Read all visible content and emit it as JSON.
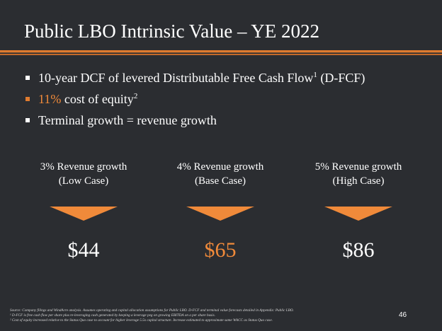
{
  "slide": {
    "title": "Public LBO Intrinsic Value – YE 2022",
    "page_number": "46"
  },
  "bullets": [
    {
      "pre": "",
      "highlight": "",
      "text": "10-year DCF of levered Distributable Free Cash Flow",
      "sup": "1",
      "post": " (D-FCF)"
    },
    {
      "pre": "",
      "highlight": "11%",
      "text": " cost of equity",
      "sup": "2",
      "post": ""
    },
    {
      "pre": "",
      "highlight": "",
      "text": "Terminal growth = revenue growth",
      "sup": "",
      "post": ""
    }
  ],
  "cases": [
    {
      "label_line1": "3% Revenue growth",
      "label_line2": "(Low Case)",
      "value": "$44"
    },
    {
      "label_line1": "4% Revenue growth",
      "label_line2": "(Base Case)",
      "value": "$65"
    },
    {
      "label_line1": "5% Revenue growth",
      "label_line2": "(High Case)",
      "value": "$86"
    }
  ],
  "footnotes": {
    "source": "Source: Company filings and WindAcre analysis. Assumes operating and capital allocation assumptions for Public LBO. D-FCF and terminal value forecasts detailed in Appendix: Public LBO.",
    "note1": "¹ D-FCF is free cash flow per share plus re-leveraging cash generated by keeping a leverage peg on growing EBITDA on a per share basis.",
    "note2": "² Cost of equity increased relative to the Status Quo case to account for higher leverage 5.5x capital structure. Increase estimated to approximate same WACC as Status Quo case."
  },
  "colors": {
    "background": "#2b2d31",
    "accent_orange": "#f08a3a",
    "text": "#ffffff"
  }
}
